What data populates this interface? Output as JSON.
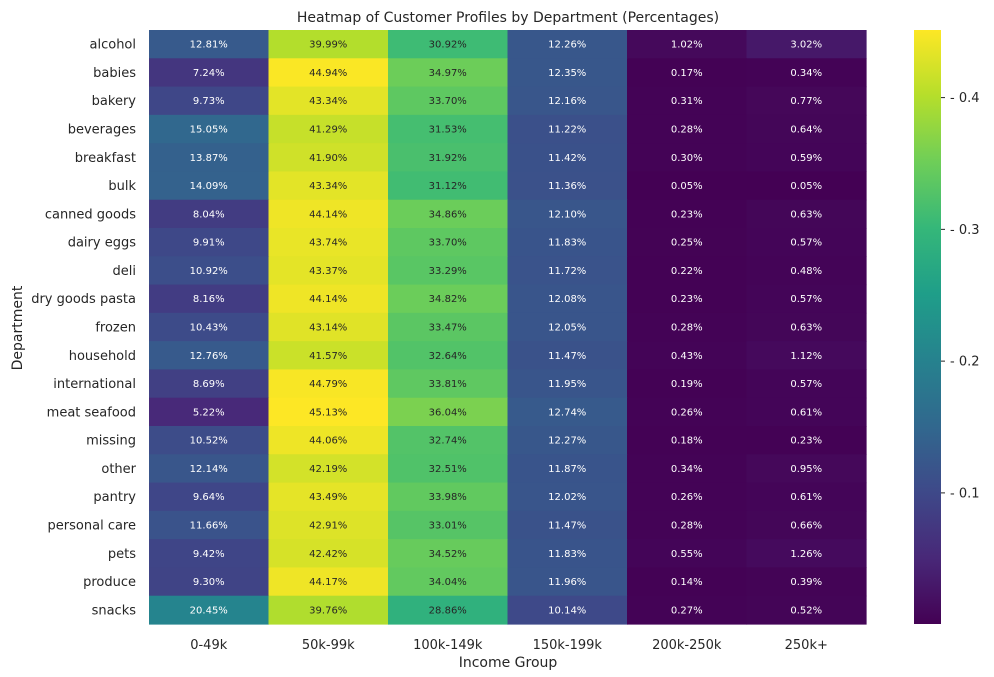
{
  "chart_data": {
    "type": "heatmap",
    "title": "Heatmap of Customer Profiles by Department (Percentages)",
    "xlabel": "Income Group",
    "ylabel": "Department",
    "colormap": "viridis",
    "colorbar": {
      "min": 0.0005,
      "max": 0.4513,
      "ticks": [
        "0.1",
        "0.2",
        "0.3",
        "0.4"
      ],
      "tick_values": [
        0.1,
        0.2,
        0.3,
        0.4
      ]
    },
    "columns": [
      "0-49k",
      "50k-99k",
      "100k-149k",
      "150k-199k",
      "200k-250k",
      "250k+"
    ],
    "rows": [
      {
        "label": "alcohol",
        "values": [
          0.1281,
          0.3999,
          0.3092,
          0.1226,
          0.0102,
          0.0302
        ],
        "labels": [
          "12.81%",
          "39.99%",
          "30.92%",
          "12.26%",
          "1.02%",
          "3.02%"
        ]
      },
      {
        "label": "babies",
        "values": [
          0.0724,
          0.4494,
          0.3497,
          0.1235,
          0.0017,
          0.0034
        ],
        "labels": [
          "7.24%",
          "44.94%",
          "34.97%",
          "12.35%",
          "0.17%",
          "0.34%"
        ]
      },
      {
        "label": "bakery",
        "values": [
          0.0973,
          0.4334,
          0.337,
          0.1216,
          0.0031,
          0.0077
        ],
        "labels": [
          "9.73%",
          "43.34%",
          "33.70%",
          "12.16%",
          "0.31%",
          "0.77%"
        ]
      },
      {
        "label": "beverages",
        "values": [
          0.1505,
          0.4129,
          0.3153,
          0.1122,
          0.0028,
          0.0064
        ],
        "labels": [
          "15.05%",
          "41.29%",
          "31.53%",
          "11.22%",
          "0.28%",
          "0.64%"
        ]
      },
      {
        "label": "breakfast",
        "values": [
          0.1387,
          0.419,
          0.3192,
          0.1142,
          0.003,
          0.0059
        ],
        "labels": [
          "13.87%",
          "41.90%",
          "31.92%",
          "11.42%",
          "0.30%",
          "0.59%"
        ]
      },
      {
        "label": "bulk",
        "values": [
          0.1409,
          0.4334,
          0.3112,
          0.1136,
          0.0005,
          0.0005
        ],
        "labels": [
          "14.09%",
          "43.34%",
          "31.12%",
          "11.36%",
          "0.05%",
          "0.05%"
        ]
      },
      {
        "label": "canned goods",
        "values": [
          0.0804,
          0.4414,
          0.3486,
          0.121,
          0.0023,
          0.0063
        ],
        "labels": [
          "8.04%",
          "44.14%",
          "34.86%",
          "12.10%",
          "0.23%",
          "0.63%"
        ]
      },
      {
        "label": "dairy eggs",
        "values": [
          0.0991,
          0.4374,
          0.337,
          0.1183,
          0.0025,
          0.0057
        ],
        "labels": [
          "9.91%",
          "43.74%",
          "33.70%",
          "11.83%",
          "0.25%",
          "0.57%"
        ]
      },
      {
        "label": "deli",
        "values": [
          0.1092,
          0.4337,
          0.3329,
          0.1172,
          0.0022,
          0.0048
        ],
        "labels": [
          "10.92%",
          "43.37%",
          "33.29%",
          "11.72%",
          "0.22%",
          "0.48%"
        ]
      },
      {
        "label": "dry goods pasta",
        "values": [
          0.0816,
          0.4414,
          0.3482,
          0.1208,
          0.0023,
          0.0057
        ],
        "labels": [
          "8.16%",
          "44.14%",
          "34.82%",
          "12.08%",
          "0.23%",
          "0.57%"
        ]
      },
      {
        "label": "frozen",
        "values": [
          0.1043,
          0.4314,
          0.3347,
          0.1205,
          0.0028,
          0.0063
        ],
        "labels": [
          "10.43%",
          "43.14%",
          "33.47%",
          "12.05%",
          "0.28%",
          "0.63%"
        ]
      },
      {
        "label": "household",
        "values": [
          0.1276,
          0.4157,
          0.3264,
          0.1147,
          0.0043,
          0.0112
        ],
        "labels": [
          "12.76%",
          "41.57%",
          "32.64%",
          "11.47%",
          "0.43%",
          "1.12%"
        ]
      },
      {
        "label": "international",
        "values": [
          0.0869,
          0.4479,
          0.3381,
          0.1195,
          0.0019,
          0.0057
        ],
        "labels": [
          "8.69%",
          "44.79%",
          "33.81%",
          "11.95%",
          "0.19%",
          "0.57%"
        ]
      },
      {
        "label": "meat seafood",
        "values": [
          0.0522,
          0.4513,
          0.3604,
          0.1274,
          0.0026,
          0.0061
        ],
        "labels": [
          "5.22%",
          "45.13%",
          "36.04%",
          "12.74%",
          "0.26%",
          "0.61%"
        ]
      },
      {
        "label": "missing",
        "values": [
          0.1052,
          0.4406,
          0.3274,
          0.1227,
          0.0018,
          0.0023
        ],
        "labels": [
          "10.52%",
          "44.06%",
          "32.74%",
          "12.27%",
          "0.18%",
          "0.23%"
        ]
      },
      {
        "label": "other",
        "values": [
          0.1214,
          0.4219,
          0.3251,
          0.1187,
          0.0034,
          0.0095
        ],
        "labels": [
          "12.14%",
          "42.19%",
          "32.51%",
          "11.87%",
          "0.34%",
          "0.95%"
        ]
      },
      {
        "label": "pantry",
        "values": [
          0.0964,
          0.4349,
          0.3398,
          0.1202,
          0.0026,
          0.0061
        ],
        "labels": [
          "9.64%",
          "43.49%",
          "33.98%",
          "12.02%",
          "0.26%",
          "0.61%"
        ]
      },
      {
        "label": "personal care",
        "values": [
          0.1166,
          0.4291,
          0.3301,
          0.1147,
          0.0028,
          0.0066
        ],
        "labels": [
          "11.66%",
          "42.91%",
          "33.01%",
          "11.47%",
          "0.28%",
          "0.66%"
        ]
      },
      {
        "label": "pets",
        "values": [
          0.0942,
          0.4242,
          0.3452,
          0.1183,
          0.0055,
          0.0126
        ],
        "labels": [
          "9.42%",
          "42.42%",
          "34.52%",
          "11.83%",
          "0.55%",
          "1.26%"
        ]
      },
      {
        "label": "produce",
        "values": [
          0.093,
          0.4417,
          0.3404,
          0.1196,
          0.0014,
          0.0039
        ],
        "labels": [
          "9.30%",
          "44.17%",
          "34.04%",
          "11.96%",
          "0.14%",
          "0.39%"
        ]
      },
      {
        "label": "snacks",
        "values": [
          0.2045,
          0.3976,
          0.2886,
          0.1014,
          0.0027,
          0.0052
        ],
        "labels": [
          "20.45%",
          "39.76%",
          "28.86%",
          "10.14%",
          "0.27%",
          "0.52%"
        ]
      }
    ]
  }
}
